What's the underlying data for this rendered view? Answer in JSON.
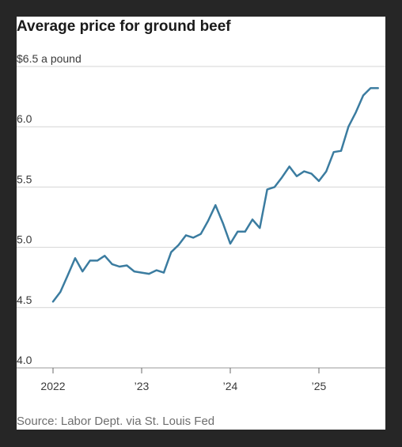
{
  "chart_data": {
    "type": "line",
    "title": "Average price for ground beef",
    "ylabel": "$6.5 a pound",
    "source": "Source: Labor Dept. via St. Louis Fed",
    "y_ticks": [
      {
        "value": 6.5,
        "label": "$6.5 a pound"
      },
      {
        "value": 6.0,
        "label": "6.0"
      },
      {
        "value": 5.5,
        "label": "5.5"
      },
      {
        "value": 5.0,
        "label": "5.0"
      },
      {
        "value": 4.5,
        "label": "4.5"
      },
      {
        "value": 4.0,
        "label": "4.0"
      }
    ],
    "x_ticks": [
      {
        "value": 2022,
        "label": "2022"
      },
      {
        "value": 2023,
        "label": "’23"
      },
      {
        "value": 2024,
        "label": "’24"
      },
      {
        "value": 2025,
        "label": "’25"
      }
    ],
    "ylim": [
      4.0,
      6.5
    ],
    "xlim": [
      2022,
      2025.75
    ],
    "grid": true,
    "line_color": "#3b7ca0",
    "series": [
      {
        "x": [
          "2022-01",
          "2022-02",
          "2022-03",
          "2022-04",
          "2022-05",
          "2022-06",
          "2022-07",
          "2022-08",
          "2022-09",
          "2022-10",
          "2022-11",
          "2022-12",
          "2023-01",
          "2023-02",
          "2023-03",
          "2023-04",
          "2023-05",
          "2023-06",
          "2023-07",
          "2023-08",
          "2023-09",
          "2023-10",
          "2023-11",
          "2023-12",
          "2024-01",
          "2024-02",
          "2024-03",
          "2024-04",
          "2024-05",
          "2024-06",
          "2024-07",
          "2024-08",
          "2024-09",
          "2024-10",
          "2024-11",
          "2024-12",
          "2025-01",
          "2025-02",
          "2025-03",
          "2025-04",
          "2025-05",
          "2025-06",
          "2025-07",
          "2025-08",
          "2025-09"
        ],
        "values": [
          4.55,
          4.63,
          4.77,
          4.91,
          4.8,
          4.89,
          4.89,
          4.93,
          4.86,
          4.84,
          4.85,
          4.8,
          4.79,
          4.78,
          4.81,
          4.79,
          4.96,
          5.02,
          5.1,
          5.08,
          5.11,
          5.22,
          5.35,
          5.2,
          5.03,
          5.13,
          5.13,
          5.23,
          5.16,
          5.48,
          5.5,
          5.58,
          5.67,
          5.59,
          5.63,
          5.61,
          5.55,
          5.63,
          5.79,
          5.8,
          6.0,
          6.12,
          6.26,
          6.32,
          6.32
        ]
      }
    ]
  }
}
